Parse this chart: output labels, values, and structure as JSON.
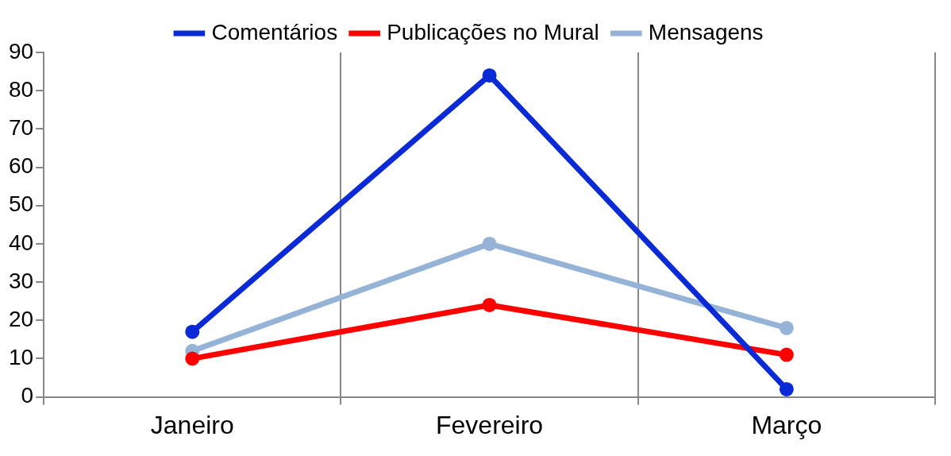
{
  "chart_data": {
    "type": "line",
    "categories": [
      "Janeiro",
      "Fevereiro",
      "Março"
    ],
    "series": [
      {
        "name": "Comentários",
        "color": "#0a2ad6",
        "values": [
          17,
          84,
          2
        ]
      },
      {
        "name": "Publicações no Mural",
        "color": "#ff0000",
        "values": [
          10,
          24,
          11
        ]
      },
      {
        "name": "Mensagens",
        "color": "#94b3d7",
        "values": [
          12,
          40,
          18
        ]
      }
    ],
    "ylim": [
      0,
      90
    ],
    "yticks": [
      0,
      10,
      20,
      30,
      40,
      50,
      60,
      70,
      80,
      90
    ],
    "grid": "x",
    "legend": "top",
    "marker": "circle",
    "line_style": "solid"
  }
}
